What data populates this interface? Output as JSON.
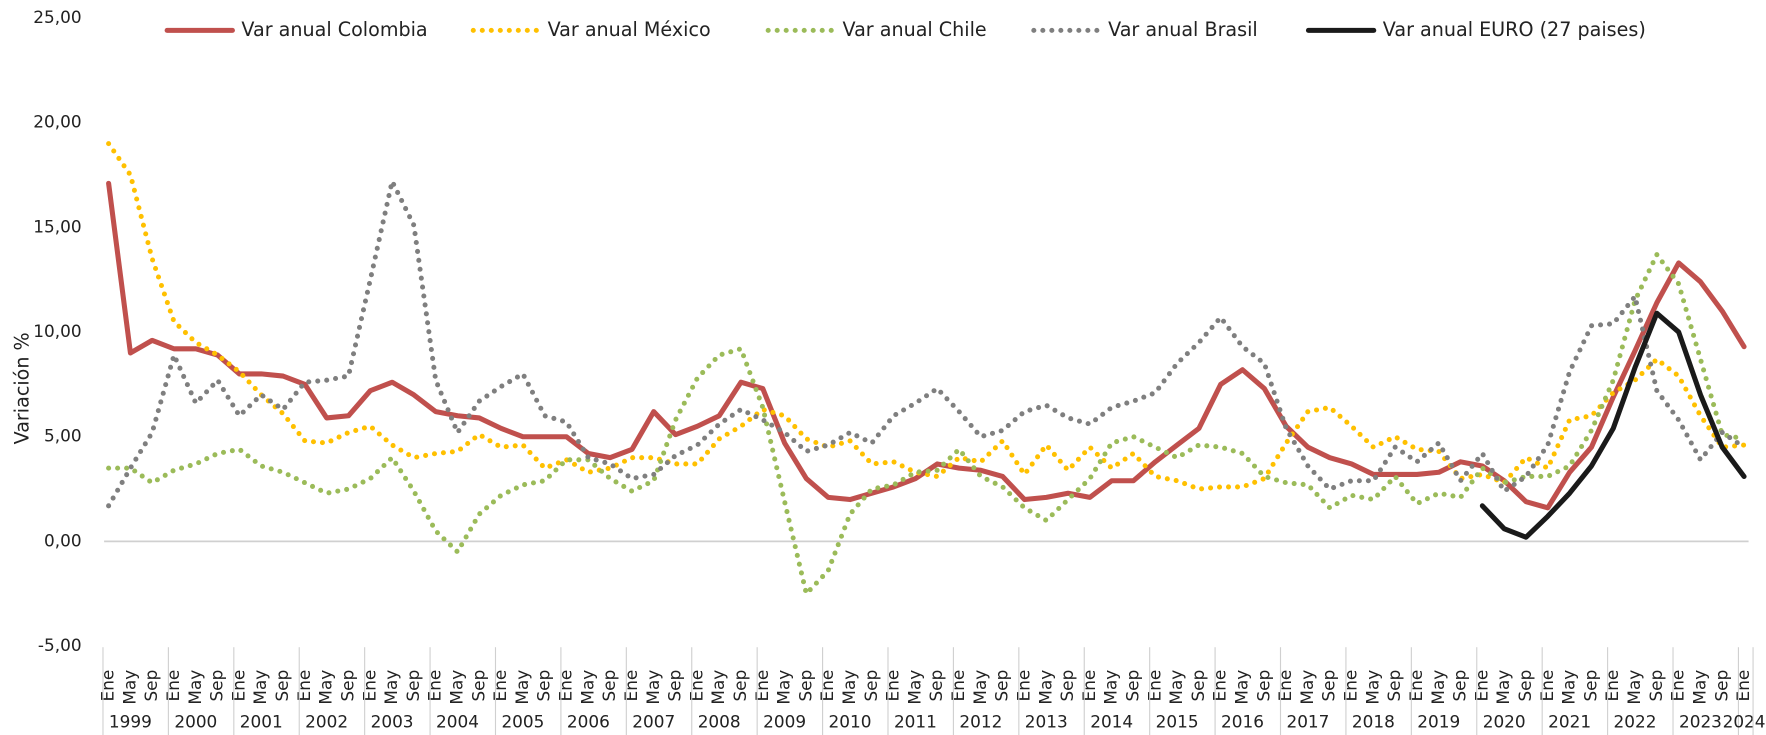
{
  "chart_data": {
    "type": "line",
    "y_label": "Variación %",
    "categories": [
      "Ene",
      "May",
      "Sep",
      "Ene",
      "May",
      "Sep",
      "Ene",
      "May",
      "Sep",
      "Ene",
      "May",
      "Sep",
      "Ene",
      "May",
      "Sep",
      "Ene",
      "May",
      "Sep",
      "Ene",
      "May",
      "Sep",
      "Ene",
      "May",
      "Sep",
      "Ene",
      "May",
      "Sep",
      "Ene",
      "May",
      "Sep",
      "Ene",
      "May",
      "Sep",
      "Ene",
      "May",
      "Sep",
      "Ene",
      "May",
      "Sep",
      "Ene",
      "May",
      "Sep",
      "Ene",
      "May",
      "Sep",
      "Ene",
      "May",
      "Sep",
      "Ene",
      "May",
      "Sep",
      "Ene",
      "May",
      "Sep",
      "Ene",
      "May",
      "Sep",
      "Ene",
      "May",
      "Sep",
      "Ene",
      "May",
      "Sep",
      "Ene",
      "May",
      "Sep",
      "Ene",
      "May",
      "Sep",
      "Ene",
      "May",
      "Sep",
      "Ene",
      "May",
      "Sep",
      "Ene"
    ],
    "years": [
      "1999",
      "2000",
      "2001",
      "2002",
      "2003",
      "2004",
      "2005",
      "2006",
      "2007",
      "2008",
      "2009",
      "2010",
      "2011",
      "2012",
      "2013",
      "2014",
      "2015",
      "2016",
      "2017",
      "2018",
      "2019",
      "2020",
      "2021",
      "2022",
      "2023",
      "2024"
    ],
    "ylim": [
      -5,
      25
    ],
    "yticks": [
      {
        "value": -5,
        "label": "-5,00"
      },
      {
        "value": 0,
        "label": "0,00"
      },
      {
        "value": 5,
        "label": "5,00"
      },
      {
        "value": 10,
        "label": "10,00"
      },
      {
        "value": 15,
        "label": "15,00"
      },
      {
        "value": 20,
        "label": "20,00"
      },
      {
        "value": 25,
        "label": "25,00"
      }
    ],
    "grid": false,
    "legend": "top",
    "series": [
      {
        "name": "Var anual Colombia",
        "color": "#c0504d",
        "style": "solid",
        "values": [
          17.1,
          9.0,
          9.6,
          9.2,
          9.2,
          8.9,
          8.0,
          8.0,
          7.9,
          7.5,
          5.9,
          6.0,
          7.2,
          7.6,
          7.0,
          6.2,
          6.0,
          5.9,
          5.4,
          5.0,
          5.0,
          5.0,
          4.2,
          4.0,
          4.4,
          6.2,
          5.1,
          5.5,
          6.0,
          7.6,
          7.3,
          4.7,
          3.0,
          2.1,
          2.0,
          2.3,
          2.6,
          3.0,
          3.7,
          3.5,
          3.4,
          3.1,
          2.0,
          2.1,
          2.3,
          2.1,
          2.9,
          2.9,
          3.8,
          4.6,
          5.4,
          7.5,
          8.2,
          7.3,
          5.5,
          4.5,
          4.0,
          3.7,
          3.2,
          3.2,
          3.2,
          3.3,
          3.8,
          3.6,
          2.9,
          1.9,
          1.6,
          3.3,
          4.5,
          6.9,
          9.1,
          11.4,
          13.3,
          12.4,
          11.0,
          9.3
        ]
      },
      {
        "name": "Var anual México",
        "color": "#ffc000",
        "style": "dotted",
        "values": [
          19.0,
          17.5,
          13.5,
          10.5,
          9.5,
          8.9,
          8.1,
          7.0,
          6.1,
          4.8,
          4.7,
          5.2,
          5.5,
          4.6,
          4.0,
          4.2,
          4.3,
          5.1,
          4.5,
          4.6,
          3.5,
          3.9,
          3.3,
          3.5,
          4.0,
          4.0,
          3.7,
          3.7,
          4.9,
          5.5,
          6.3,
          6.0,
          4.9,
          4.5,
          4.8,
          3.7,
          3.8,
          3.3,
          3.1,
          4.0,
          3.8,
          4.8,
          3.2,
          4.6,
          3.4,
          4.5,
          3.5,
          4.2,
          3.1,
          2.9,
          2.5,
          2.6,
          2.6,
          3.0,
          4.7,
          6.2,
          6.4,
          5.5,
          4.5,
          5.0,
          4.4,
          4.3,
          3.0,
          3.2,
          2.8,
          4.0,
          3.5,
          5.8,
          6.0,
          7.1,
          7.7,
          8.7,
          7.9,
          6.0,
          4.5,
          4.6
        ]
      },
      {
        "name": "Var anual Chile",
        "color": "#9bbb59",
        "style": "dotted",
        "values": [
          3.5,
          3.5,
          2.8,
          3.4,
          3.7,
          4.2,
          4.4,
          3.6,
          3.3,
          2.8,
          2.3,
          2.5,
          3.0,
          4.0,
          2.4,
          0.5,
          -0.5,
          1.3,
          2.2,
          2.7,
          2.9,
          3.9,
          3.9,
          3.0,
          2.4,
          2.9,
          5.8,
          7.8,
          8.9,
          9.2,
          6.4,
          1.9,
          -2.5,
          -1.4,
          1.3,
          2.5,
          2.7,
          3.3,
          3.4,
          4.4,
          3.1,
          2.6,
          1.6,
          1.0,
          2.0,
          3.0,
          4.7,
          5.0,
          4.5,
          4.0,
          4.6,
          4.5,
          4.2,
          3.1,
          2.8,
          2.7,
          1.6,
          2.2,
          2.0,
          3.1,
          1.8,
          2.3,
          2.1,
          3.5,
          2.8,
          3.1,
          3.1,
          3.6,
          5.3,
          7.7,
          11.5,
          13.7,
          12.3,
          8.7,
          5.1,
          4.9
        ]
      },
      {
        "name": "Var anual Brasil",
        "color": "#7f7f7f",
        "style": "dotted",
        "values": [
          1.7,
          3.5,
          5.2,
          8.9,
          6.6,
          7.7,
          6.0,
          7.0,
          6.3,
          7.6,
          7.7,
          7.9,
          12.5,
          17.2,
          15.1,
          7.7,
          5.2,
          6.7,
          7.4,
          8.0,
          6.0,
          5.7,
          4.0,
          3.7,
          3.0,
          3.2,
          4.1,
          4.6,
          5.6,
          6.3,
          5.8,
          5.2,
          4.3,
          4.6,
          5.2,
          4.7,
          6.0,
          6.6,
          7.3,
          6.2,
          5.0,
          5.3,
          6.2,
          6.5,
          5.9,
          5.6,
          6.4,
          6.7,
          7.1,
          8.5,
          9.5,
          10.7,
          9.3,
          8.5,
          5.4,
          3.6,
          2.5,
          2.9,
          2.9,
          4.5,
          3.8,
          4.7,
          2.9,
          4.2,
          2.4,
          3.1,
          4.6,
          8.1,
          10.3,
          10.4,
          11.7,
          7.2,
          5.8,
          3.9,
          5.2,
          4.5
        ]
      },
      {
        "name": "Var anual EURO (27 paises)",
        "color": "#1a1a1a",
        "style": "solid",
        "values": [
          null,
          null,
          null,
          null,
          null,
          null,
          null,
          null,
          null,
          null,
          null,
          null,
          null,
          null,
          null,
          null,
          null,
          null,
          null,
          null,
          null,
          null,
          null,
          null,
          null,
          null,
          null,
          null,
          null,
          null,
          null,
          null,
          null,
          null,
          null,
          null,
          null,
          null,
          null,
          null,
          null,
          null,
          null,
          null,
          null,
          null,
          null,
          null,
          null,
          null,
          null,
          null,
          null,
          null,
          null,
          null,
          null,
          null,
          null,
          null,
          null,
          null,
          null,
          1.7,
          0.6,
          0.2,
          1.2,
          2.3,
          3.6,
          5.4,
          8.3,
          10.9,
          10.0,
          7.0,
          4.5,
          3.1
        ]
      }
    ]
  }
}
